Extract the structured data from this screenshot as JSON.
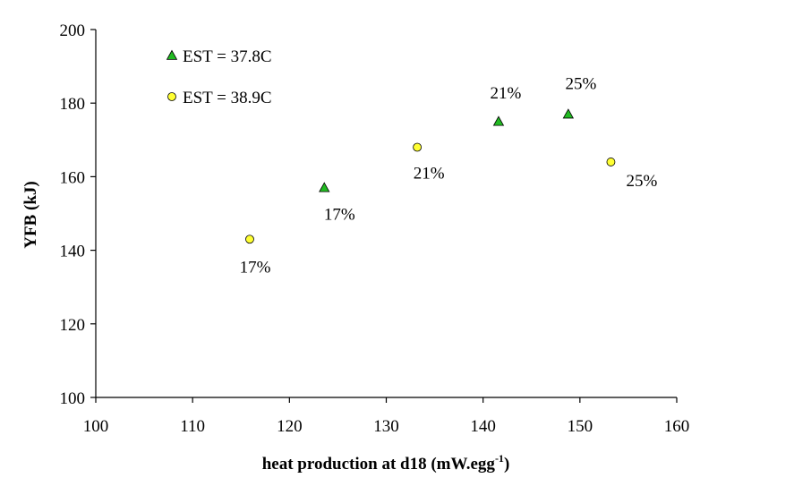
{
  "chart_data": {
    "type": "scatter",
    "title": "",
    "xlabel": "heat production at d18 (mW.egg",
    "xlabel_sup": "-1",
    "xlabel_end": ")",
    "ylabel": "YFB (kJ)",
    "xlim": [
      100,
      160
    ],
    "ylim": [
      100,
      200
    ],
    "xticks": [
      100,
      110,
      120,
      130,
      140,
      150,
      160
    ],
    "yticks": [
      100,
      120,
      140,
      160,
      180,
      200
    ],
    "grid": false,
    "legend_position": "top-left",
    "series": [
      {
        "name": "EST = 37.8C",
        "marker": "triangle",
        "color": "#22bb22",
        "points": [
          {
            "x": 123.6,
            "y": 157,
            "label": "17%"
          },
          {
            "x": 141.6,
            "y": 175,
            "label": "21%"
          },
          {
            "x": 148.8,
            "y": 177,
            "label": "25%"
          }
        ]
      },
      {
        "name": "EST = 38.9C",
        "marker": "circle",
        "color": "#ffff33",
        "points": [
          {
            "x": 115.9,
            "y": 143,
            "label": "17%"
          },
          {
            "x": 133.2,
            "y": 168,
            "label": "21%"
          },
          {
            "x": 153.2,
            "y": 164,
            "label": "25%"
          }
        ]
      }
    ]
  }
}
